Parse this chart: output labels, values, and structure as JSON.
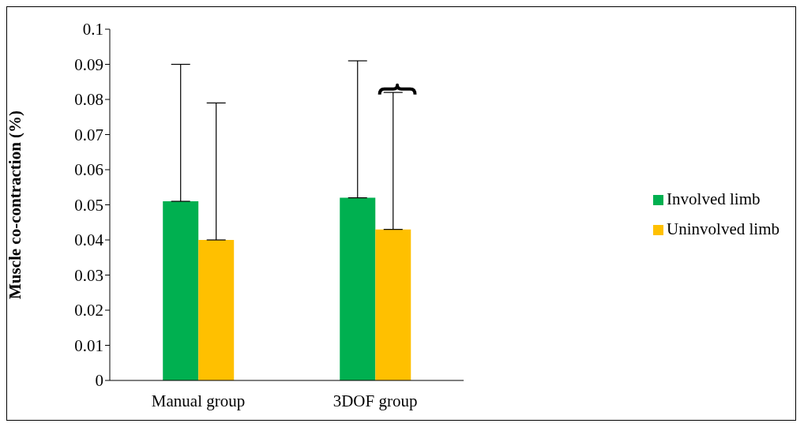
{
  "chart_data": {
    "type": "bar",
    "ylabel": "Muscle co-contraction (%)",
    "categories": [
      "Manual group",
      "3DOF group"
    ],
    "series": [
      {
        "name": "Involved limb",
        "color": "#00b050",
        "values": [
          0.051,
          0.052
        ],
        "errors": [
          [
            0.051,
            0.09
          ],
          [
            0.052,
            0.091
          ]
        ]
      },
      {
        "name": "Uninvolved limb",
        "color": "#ffc000",
        "values": [
          0.04,
          0.043
        ],
        "errors": [
          [
            0.04,
            0.079
          ],
          [
            0.043,
            0.082
          ]
        ]
      }
    ],
    "ylim": [
      0,
      0.1
    ],
    "yticks": [
      0,
      0.01,
      0.02,
      0.03,
      0.04,
      0.05,
      0.06,
      0.07,
      0.08,
      0.09,
      0.1
    ],
    "grid": false,
    "legend": "right"
  }
}
